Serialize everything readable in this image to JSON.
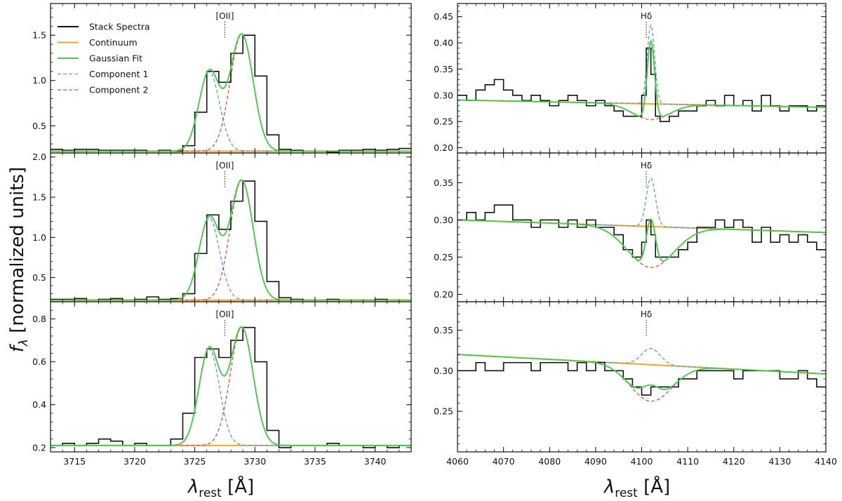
{
  "figure": {
    "ylabel_main": "f",
    "ylabel_sub": "λ",
    "ylabel_rest": " [normalized units]",
    "xlabel_main": "λ",
    "xlabel_sub": "rest",
    "xlabel_rest": " [Å]"
  },
  "legend": {
    "placement": "top-left of top-left panel",
    "entries": [
      {
        "label": "Stack Spectra",
        "color": "#111111",
        "style": "solid"
      },
      {
        "label": "Continuum",
        "color": "#f5a623",
        "style": "solid"
      },
      {
        "label": "Gaussian Fit",
        "color": "#4cc94c",
        "style": "solid"
      },
      {
        "label": "Component 1",
        "color": "#5b9be0",
        "style": "dashed"
      },
      {
        "label": "Component 2",
        "color": "#d9534f",
        "style": "dashed"
      }
    ]
  },
  "colors": {
    "spectrum": "#111111",
    "continuum": "#f5a623",
    "fit": "#4cc94c",
    "comp1": "#5b9be0",
    "comp2": "#d9534f"
  },
  "chart_data": [
    {
      "type": "line",
      "column": "left",
      "row": 0,
      "xlim": [
        3713,
        3743
      ],
      "ylim": [
        0.2,
        1.85
      ],
      "yticks": [
        0.5,
        1.0,
        1.5
      ],
      "xticks": [
        3715,
        3720,
        3725,
        3730,
        3735,
        3740
      ],
      "show_xticklabels": false,
      "line_label": "[OII]",
      "line_x": 3727.5,
      "continuum": 0.22,
      "components": [
        {
          "type": "gauss",
          "center": 3726.2,
          "amp": 0.88,
          "sigma": 0.85
        },
        {
          "type": "gauss",
          "center": 3728.9,
          "amp": 1.29,
          "sigma": 0.95
        }
      ],
      "step_x": [
        3713,
        3714,
        3715,
        3716,
        3717,
        3718,
        3719,
        3720,
        3721,
        3722,
        3723,
        3724,
        3725,
        3726,
        3727,
        3728,
        3729,
        3730,
        3731,
        3732,
        3733,
        3734,
        3735,
        3736,
        3737,
        3738,
        3739,
        3740,
        3741,
        3742
      ],
      "step_y": [
        0.24,
        0.23,
        0.24,
        0.24,
        0.23,
        0.23,
        0.23,
        0.23,
        0.22,
        0.23,
        0.22,
        0.28,
        0.65,
        1.1,
        0.98,
        1.3,
        1.5,
        1.05,
        0.4,
        0.24,
        0.23,
        0.22,
        0.22,
        0.21,
        0.23,
        0.23,
        0.24,
        0.23,
        0.24,
        0.25
      ]
    },
    {
      "type": "line",
      "column": "left",
      "row": 1,
      "xlim": [
        3713,
        3743
      ],
      "ylim": [
        0.2,
        2.05
      ],
      "yticks": [
        0.5,
        1.0,
        1.5,
        2.0
      ],
      "xticks": [
        3715,
        3720,
        3725,
        3730,
        3735,
        3740
      ],
      "show_xticklabels": false,
      "line_label": "[OII]",
      "line_x": 3727.5,
      "continuum": 0.22,
      "components": [
        {
          "type": "gauss",
          "center": 3726.2,
          "amp": 1.02,
          "sigma": 0.85
        },
        {
          "type": "gauss",
          "center": 3728.9,
          "amp": 1.49,
          "sigma": 0.95
        }
      ],
      "step_x": [
        3713,
        3714,
        3715,
        3716,
        3717,
        3718,
        3719,
        3720,
        3721,
        3722,
        3723,
        3724,
        3725,
        3726,
        3727,
        3728,
        3729,
        3730,
        3731,
        3732,
        3733,
        3734,
        3735,
        3736,
        3737,
        3738,
        3739,
        3740,
        3741,
        3742
      ],
      "step_y": [
        0.23,
        0.23,
        0.24,
        0.22,
        0.23,
        0.24,
        0.22,
        0.23,
        0.26,
        0.23,
        0.24,
        0.3,
        0.8,
        1.28,
        1.1,
        1.45,
        1.7,
        1.2,
        0.45,
        0.25,
        0.23,
        0.22,
        0.22,
        0.23,
        0.22,
        0.22,
        0.22,
        0.23,
        0.22,
        0.22
      ]
    },
    {
      "type": "line",
      "column": "left",
      "row": 2,
      "xlim": [
        3713,
        3743
      ],
      "ylim": [
        0.18,
        0.88
      ],
      "yticks": [
        0.2,
        0.4,
        0.6,
        0.8
      ],
      "xticks": [
        3715,
        3720,
        3725,
        3730,
        3735,
        3740
      ],
      "show_xticklabels": true,
      "line_label": "[OII]",
      "line_x": 3727.5,
      "continuum": 0.21,
      "components": [
        {
          "type": "gauss",
          "center": 3726.2,
          "amp": 0.45,
          "sigma": 0.85
        },
        {
          "type": "gauss",
          "center": 3728.9,
          "amp": 0.55,
          "sigma": 0.95
        }
      ],
      "step_x": [
        3713,
        3714,
        3715,
        3716,
        3717,
        3718,
        3719,
        3720,
        3721,
        3722,
        3723,
        3724,
        3725,
        3726,
        3727,
        3728,
        3729,
        3730,
        3731,
        3732,
        3733,
        3734,
        3735,
        3736,
        3737,
        3738,
        3739,
        3740,
        3741,
        3742
      ],
      "step_y": [
        0.21,
        0.22,
        0.21,
        0.22,
        0.24,
        0.23,
        0.21,
        0.22,
        0.21,
        0.21,
        0.24,
        0.36,
        0.62,
        0.66,
        0.62,
        0.7,
        0.76,
        0.6,
        0.28,
        0.2,
        0.21,
        0.21,
        0.21,
        0.22,
        0.21,
        0.21,
        0.2,
        0.21,
        0.2,
        0.21
      ]
    },
    {
      "type": "line",
      "column": "right",
      "row": 0,
      "xlim": [
        4060,
        4140
      ],
      "ylim": [
        0.19,
        0.475
      ],
      "yticks": [
        0.2,
        0.25,
        0.3,
        0.35,
        0.4,
        0.45
      ],
      "xticks": [
        4060,
        4070,
        4080,
        4090,
        4100,
        4110,
        4120,
        4130,
        4140
      ],
      "show_xticklabels": false,
      "line_label": "Hδ",
      "line_x": 4101,
      "continuum_line": [
        0.291,
        0.277
      ],
      "components": [
        {
          "type": "gauss",
          "center": 4102.0,
          "amp": 0.15,
          "sigma": 0.8
        },
        {
          "type": "gauss",
          "center": 4102.0,
          "amp": -0.03,
          "sigma": 4.0
        }
      ],
      "step_x": [
        4060,
        4062,
        4064,
        4066,
        4068,
        4070,
        4072,
        4074,
        4076,
        4078,
        4080,
        4082,
        4084,
        4086,
        4088,
        4090,
        4092,
        4094,
        4096,
        4098,
        4100,
        4101,
        4102,
        4103,
        4104,
        4106,
        4108,
        4110,
        4112,
        4114,
        4116,
        4118,
        4120,
        4122,
        4124,
        4126,
        4128,
        4130,
        4132,
        4134,
        4136,
        4138
      ],
      "step_y": [
        0.3,
        0.29,
        0.31,
        0.32,
        0.33,
        0.31,
        0.3,
        0.29,
        0.3,
        0.29,
        0.28,
        0.29,
        0.3,
        0.29,
        0.28,
        0.29,
        0.28,
        0.27,
        0.26,
        0.26,
        0.3,
        0.39,
        0.34,
        0.26,
        0.25,
        0.26,
        0.27,
        0.27,
        0.28,
        0.29,
        0.28,
        0.3,
        0.28,
        0.29,
        0.27,
        0.3,
        0.28,
        0.27,
        0.28,
        0.28,
        0.27,
        0.28
      ]
    },
    {
      "type": "line",
      "column": "right",
      "row": 1,
      "xlim": [
        4060,
        4140
      ],
      "ylim": [
        0.19,
        0.39
      ],
      "yticks": [
        0.2,
        0.25,
        0.3,
        0.35
      ],
      "xticks": [
        4060,
        4070,
        4080,
        4090,
        4100,
        4110,
        4120,
        4130,
        4140
      ],
      "show_xticklabels": false,
      "line_label": "Hδ",
      "line_x": 4101,
      "continuum_line": [
        0.3,
        0.283
      ],
      "components": [
        {
          "type": "gauss",
          "center": 4102.0,
          "amp": 0.065,
          "sigma": 1.0
        },
        {
          "type": "gauss",
          "center": 4102.0,
          "amp": -0.055,
          "sigma": 5.0
        }
      ],
      "step_x": [
        4060,
        4062,
        4064,
        4066,
        4068,
        4070,
        4072,
        4074,
        4076,
        4078,
        4080,
        4082,
        4084,
        4086,
        4088,
        4090,
        4092,
        4094,
        4096,
        4098,
        4100,
        4101,
        4102,
        4103,
        4104,
        4106,
        4108,
        4110,
        4112,
        4114,
        4116,
        4118,
        4120,
        4122,
        4124,
        4126,
        4128,
        4130,
        4132,
        4134,
        4136,
        4138
      ],
      "step_y": [
        0.3,
        0.31,
        0.3,
        0.31,
        0.32,
        0.32,
        0.3,
        0.3,
        0.29,
        0.3,
        0.3,
        0.29,
        0.3,
        0.29,
        0.3,
        0.29,
        0.29,
        0.28,
        0.26,
        0.25,
        0.27,
        0.3,
        0.28,
        0.25,
        0.25,
        0.25,
        0.26,
        0.27,
        0.29,
        0.29,
        0.3,
        0.29,
        0.3,
        0.29,
        0.27,
        0.29,
        0.27,
        0.28,
        0.27,
        0.28,
        0.27,
        0.26
      ]
    },
    {
      "type": "line",
      "column": "right",
      "row": 2,
      "xlim": [
        4060,
        4140
      ],
      "ylim": [
        0.2,
        0.385
      ],
      "yticks": [
        0.25,
        0.3,
        0.35
      ],
      "xticks": [
        4060,
        4070,
        4080,
        4090,
        4100,
        4110,
        4120,
        4130,
        4140
      ],
      "show_xticklabels": true,
      "line_label": "Hδ",
      "line_x": 4101,
      "continuum_line": [
        0.32,
        0.296
      ],
      "components": [
        {
          "type": "gauss",
          "center": 4102.0,
          "amp": 0.02,
          "sigma": 2.0
        },
        {
          "type": "gauss",
          "center": 4102.0,
          "amp": -0.045,
          "sigma": 4.5
        }
      ],
      "step_x": [
        4060,
        4062,
        4064,
        4066,
        4068,
        4070,
        4072,
        4074,
        4076,
        4078,
        4080,
        4082,
        4084,
        4086,
        4088,
        4090,
        4092,
        4094,
        4096,
        4098,
        4100,
        4101,
        4102,
        4103,
        4104,
        4106,
        4108,
        4110,
        4112,
        4114,
        4116,
        4118,
        4120,
        4122,
        4124,
        4126,
        4128,
        4130,
        4132,
        4134,
        4136,
        4138
      ],
      "step_y": [
        0.3,
        0.3,
        0.31,
        0.3,
        0.3,
        0.31,
        0.31,
        0.31,
        0.3,
        0.31,
        0.31,
        0.31,
        0.3,
        0.31,
        0.3,
        0.31,
        0.3,
        0.3,
        0.29,
        0.28,
        0.27,
        0.27,
        0.28,
        0.28,
        0.28,
        0.28,
        0.29,
        0.29,
        0.3,
        0.3,
        0.3,
        0.3,
        0.29,
        0.3,
        0.3,
        0.3,
        0.3,
        0.29,
        0.29,
        0.3,
        0.29,
        0.28
      ]
    }
  ]
}
